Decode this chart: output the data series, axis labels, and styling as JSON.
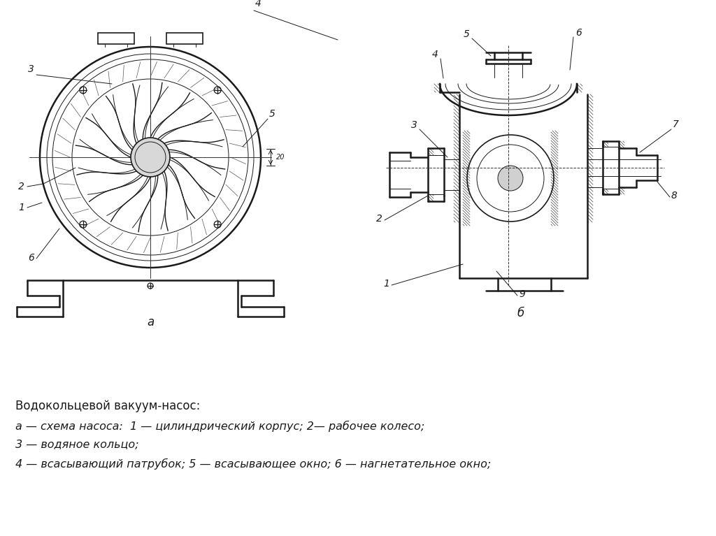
{
  "background_color": "#ffffff",
  "title_line1": "Водокольцевой вакуум-насос:",
  "title_line2": "а — схема насоса:  1 — цилиндрический корпус; 2— рабочее колесо;",
  "title_line3": "3 — водяное кольцо;",
  "title_line4": "4 — всасывающий патрубок; 5 — всасывающее окно; 6 — нагнетательное окно;",
  "label_a": "а",
  "label_b": "б",
  "fig_width": 10.24,
  "fig_height": 7.67,
  "dpi": 100,
  "color": "#1a1a1a"
}
